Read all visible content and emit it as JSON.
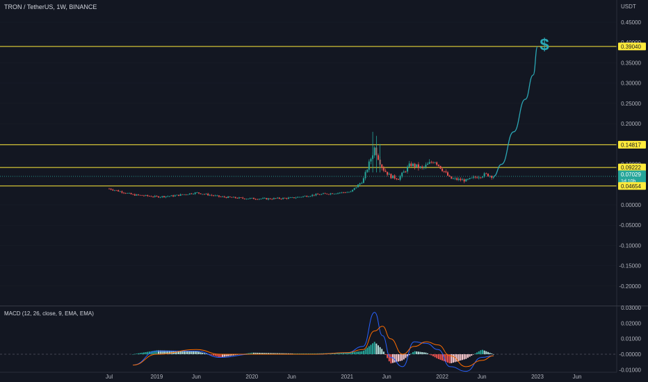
{
  "header": {
    "symbol_line": "TRON / TetherUS, 1W, BINANCE",
    "currency": "USDT"
  },
  "macd": {
    "label": "MACD (12, 26, close, 9, EMA, EMA)",
    "ticks": [
      "0.03000",
      "0.02000",
      "0.01000",
      "-0.00000",
      "-0.01000"
    ]
  },
  "price_axis": {
    "ticks": [
      "0.45000",
      "0.40000",
      "0.35000",
      "0.30000",
      "0.25000",
      "0.20000",
      "0.15000",
      "0.10000",
      "0.05000",
      "0.00000",
      "-0.05000",
      "-0.10000",
      "-0.15000",
      "-0.20000"
    ]
  },
  "time_axis": {
    "ticks": [
      "Jul",
      "2019",
      "Jun",
      "2020",
      "Jun",
      "2021",
      "Jun",
      "2022",
      "Jun",
      "2023",
      "Jun"
    ]
  },
  "level_labels": [
    {
      "text": "0.39040",
      "bg": "#ffeb3b",
      "fg": "#131722"
    },
    {
      "text": "0.14817",
      "bg": "#ffeb3b",
      "fg": "#131722"
    },
    {
      "text": "0.09222",
      "bg": "#ffeb3b",
      "fg": "#131722"
    },
    {
      "text": "0.07029",
      "bg": "#26a69a",
      "fg": "#ffffff"
    },
    {
      "text": "1d 10h",
      "bg": "#26a69a",
      "fg": "#ffffff"
    },
    {
      "text": "0.04654",
      "bg": "#ffeb3b",
      "fg": "#131722"
    }
  ],
  "annotation": {
    "symbol": "$"
  },
  "colors": {
    "background": "#131722",
    "up": "#26a69a",
    "down": "#ef5350",
    "level_line": "#ffeb3b",
    "projection": "#2ba7b5",
    "macd_line": "#2962ff",
    "signal_line": "#ff6d00",
    "axis_text": "#b2b5be",
    "grid": "#2a2e39"
  },
  "chart_data": {
    "type": "line",
    "price_range": [
      -0.2,
      0.45
    ],
    "horizontal_levels": [
      0.3904,
      0.14817,
      0.09222,
      0.04654
    ],
    "last_price": 0.07029,
    "price_path": {
      "name": "",
      "x": [
        "2018-07-01",
        "2018-08-01",
        "2018-10-01",
        "2019-01-01",
        "2019-03-01",
        "2019-06-01",
        "2019-09-01",
        "2019-12-01",
        "2020-03-01",
        "2020-06-01",
        "2020-09-01",
        "2020-12-01",
        "2021-01-15",
        "2021-03-01",
        "2021-04-15",
        "2021-05-15",
        "2021-06-15",
        "2021-07-15",
        "2021-09-01",
        "2021-10-15",
        "2021-12-01",
        "2022-02-01",
        "2022-04-01",
        "2022-05-15",
        "2022-06-15",
        "2022-07-15"
      ],
      "y": [
        0.04,
        0.035,
        0.025,
        0.02,
        0.022,
        0.03,
        0.02,
        0.016,
        0.015,
        0.017,
        0.025,
        0.03,
        0.032,
        0.06,
        0.14,
        0.09,
        0.07,
        0.065,
        0.1,
        0.09,
        0.11,
        0.065,
        0.06,
        0.07,
        0.075,
        0.07
      ]
    },
    "projection": {
      "name": "",
      "x": [
        "2022-07-15",
        "2022-08-15",
        "2022-10-01",
        "2022-11-15",
        "2022-12-15",
        "2023-01-01"
      ],
      "y": [
        0.07029,
        0.1,
        0.18,
        0.26,
        0.32,
        0.39
      ]
    },
    "macd": {
      "range": [
        -0.012,
        0.03
      ],
      "hist_x": [
        "2018-10-01",
        "2019-01-01",
        "2019-06-01",
        "2019-09-01",
        "2020-01-01",
        "2020-06-01",
        "2020-09-01",
        "2021-01-01",
        "2021-03-01",
        "2021-04-15",
        "2021-05-15",
        "2021-06-15",
        "2021-08-01",
        "2021-09-15",
        "2021-11-01",
        "2021-12-15",
        "2022-02-01",
        "2022-04-01",
        "2022-06-01",
        "2022-07-15"
      ],
      "hist": [
        0.0,
        0.0025,
        0.002,
        -0.002,
        0.001,
        0.0005,
        0.0005,
        0.001,
        0.002,
        0.008,
        0.003,
        -0.006,
        -0.004,
        0.002,
        0.001,
        -0.003,
        -0.006,
        -0.003,
        0.003,
        0.0
      ],
      "macd_line": [
        -0.007,
        0.002,
        0.002,
        -0.002,
        0.0,
        0.0,
        0.0,
        0.001,
        0.005,
        0.027,
        0.012,
        -0.002,
        -0.008,
        0.008,
        0.007,
        0.003,
        -0.008,
        -0.011,
        -0.002,
        -0.001
      ],
      "signal_line": [
        -0.007,
        0.0,
        0.003,
        0.0,
        0.0,
        0.0,
        0.0,
        0.001,
        0.003,
        0.015,
        0.018,
        0.01,
        0.0,
        0.005,
        0.008,
        0.006,
        -0.001,
        -0.008,
        -0.004,
        -0.001
      ]
    }
  }
}
